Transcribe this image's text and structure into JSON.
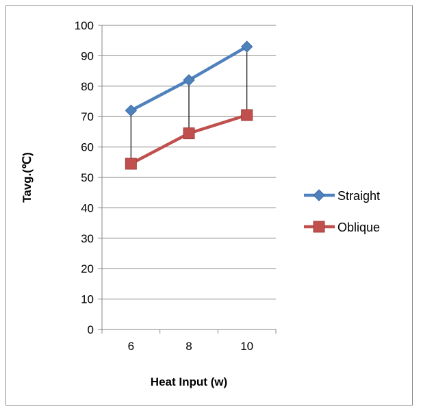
{
  "chart_data": {
    "type": "line",
    "categories": [
      "6",
      "8",
      "10"
    ],
    "xlabel": "Heat Input (w)",
    "ylabel": "Tavg.(℃)",
    "ylim": [
      0,
      100
    ],
    "ytick_step": 10,
    "grid": true,
    "legend_position": "right",
    "series": [
      {
        "name": "Straight",
        "values": [
          72,
          82,
          93
        ],
        "color": "#4f81bd",
        "marker": "diamond"
      },
      {
        "name": "Oblique",
        "values": [
          54.5,
          64.5,
          70.5
        ],
        "color": "#c0504d",
        "marker": "square"
      }
    ],
    "high_low_lines": true
  }
}
